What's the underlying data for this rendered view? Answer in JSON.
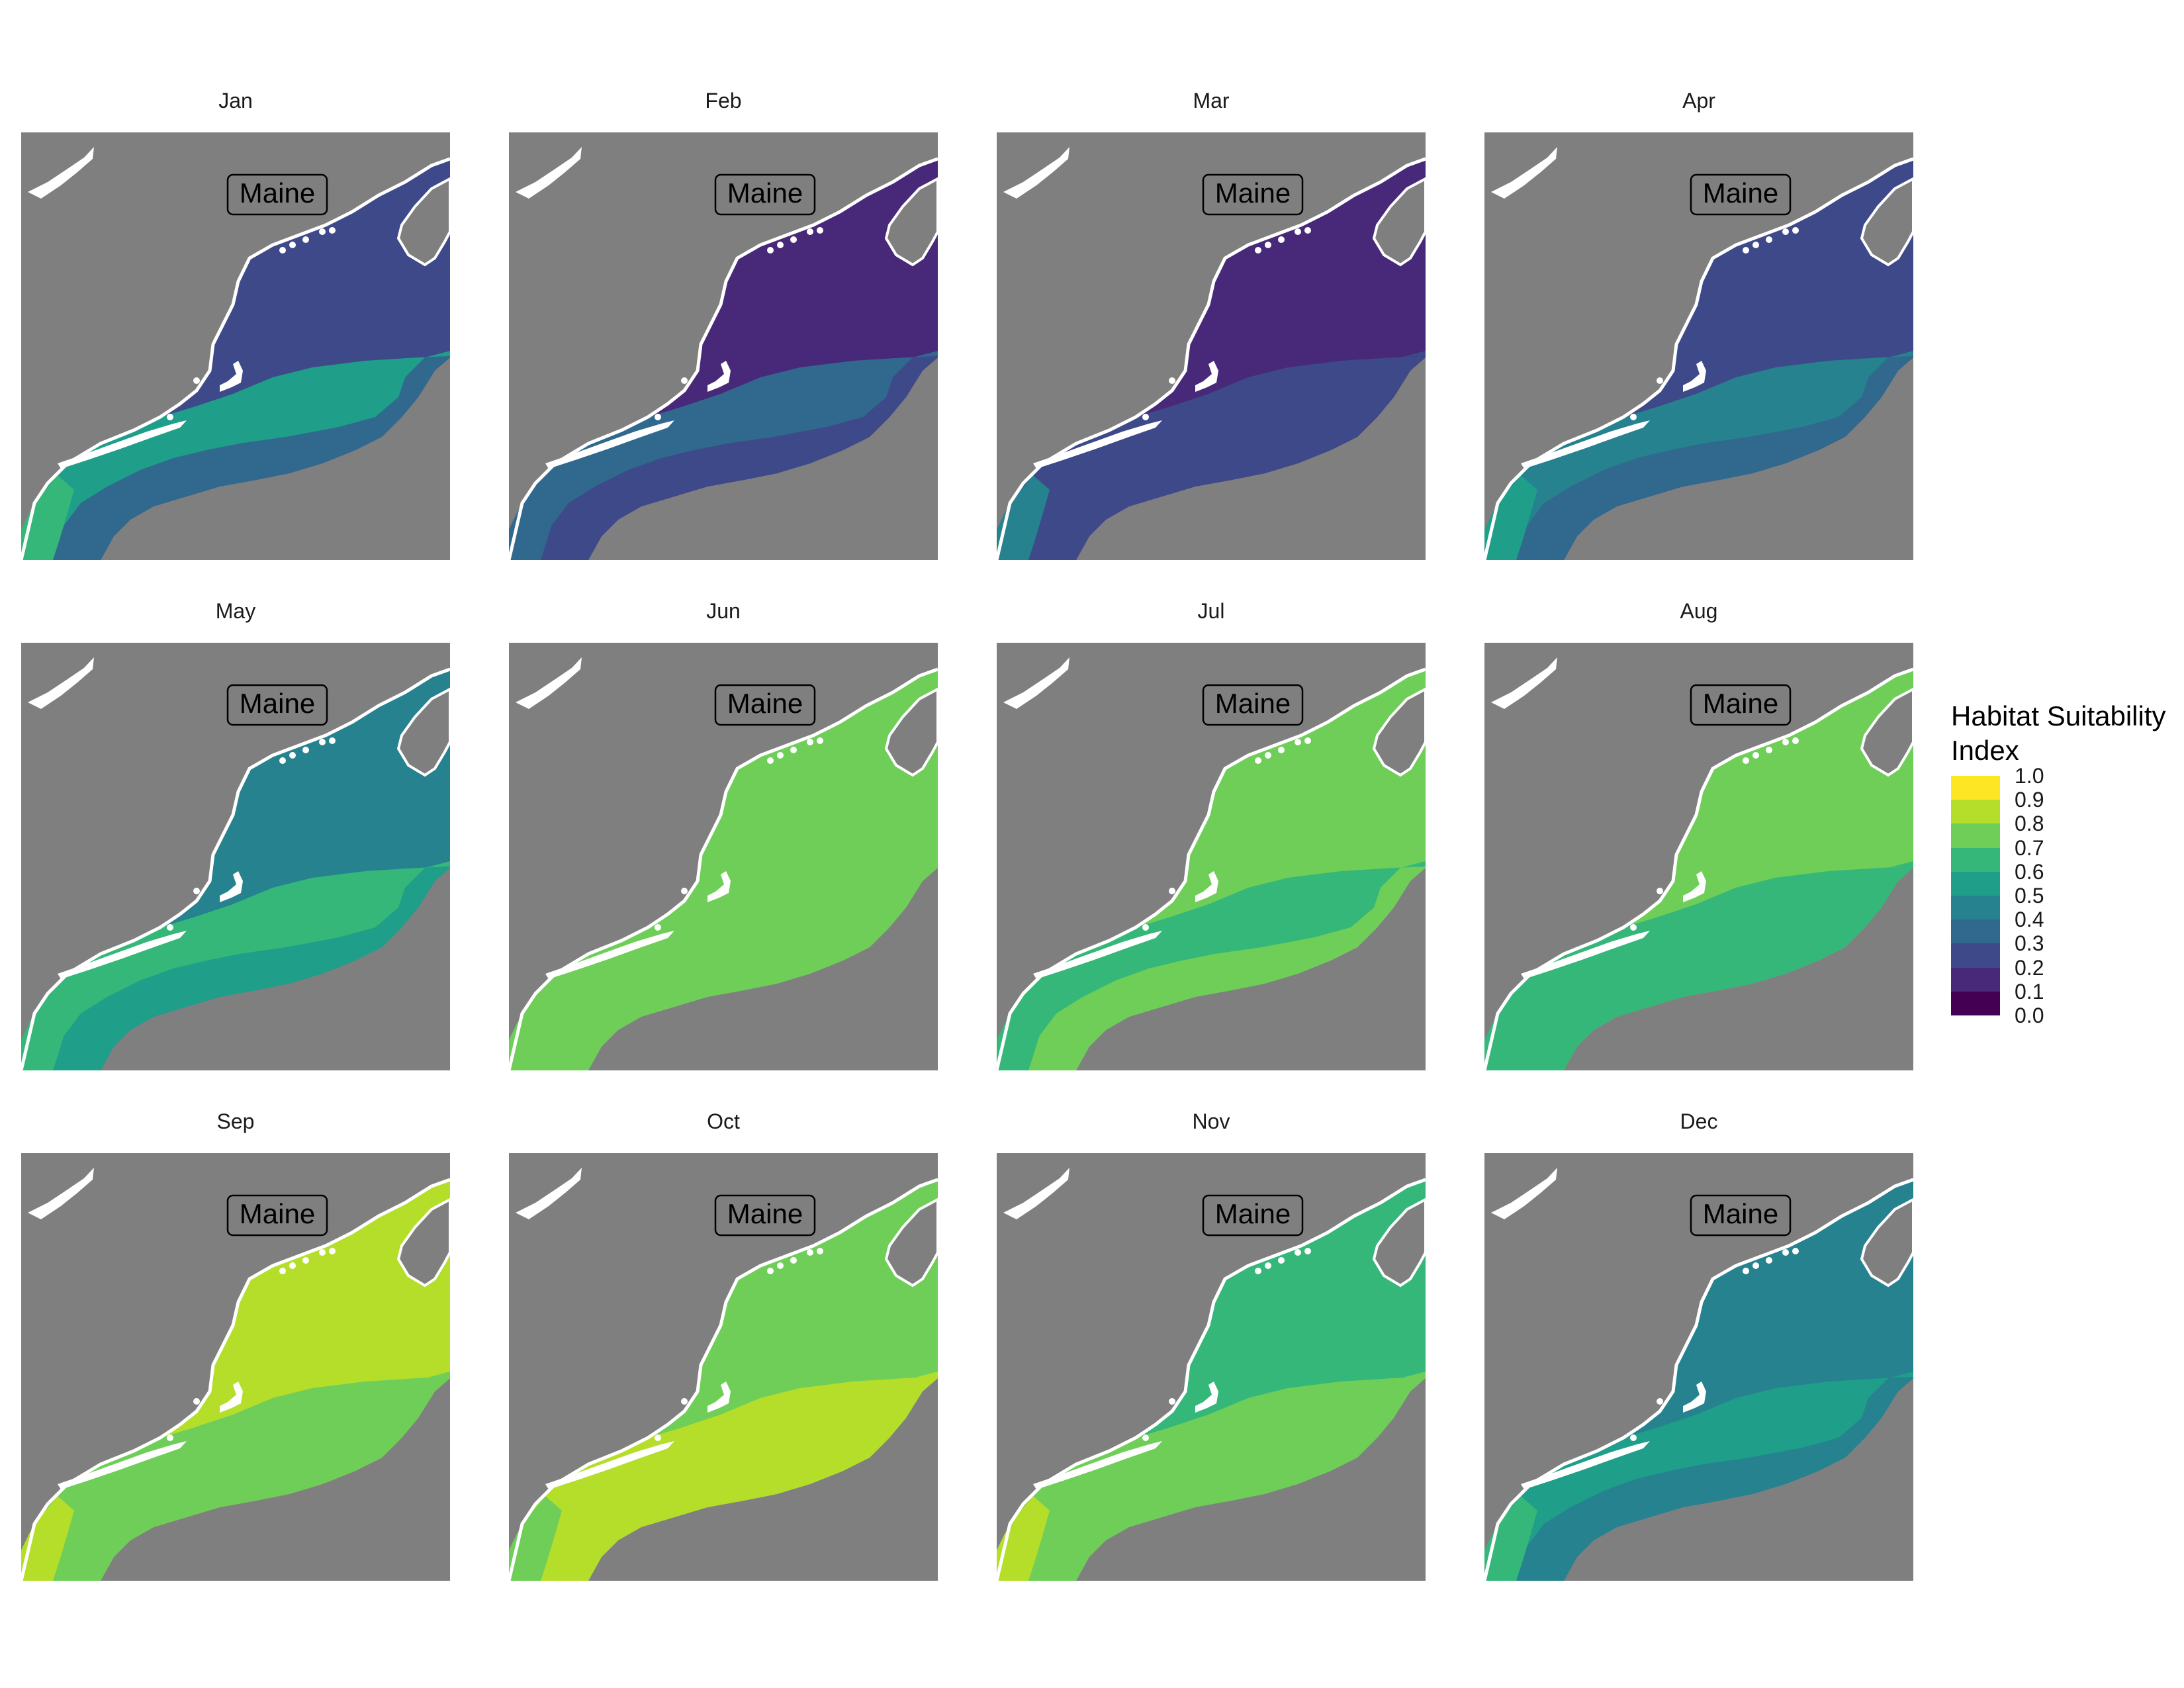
{
  "map_label": "Maine",
  "legend": {
    "title_line1": "Habitat Suitability",
    "title_line2": "Index",
    "labels": [
      "1.0",
      "0.9",
      "0.8",
      "0.7",
      "0.6",
      "0.5",
      "0.4",
      "0.3",
      "0.2",
      "0.1",
      "0.0"
    ],
    "colors": [
      "#fde725",
      "#b5de2b",
      "#6ece58",
      "#35b779",
      "#1f9e89",
      "#26828e",
      "#31688e",
      "#3e4989",
      "#482878",
      "#440154"
    ]
  },
  "colors": {
    "land": "#7f7f7f",
    "coast": "#ffffff"
  },
  "months": [
    {
      "label": "Jan",
      "gulf_index": 0.25,
      "mid_index": 0.35,
      "south_index": 0.55,
      "inshore_index": 0.65
    },
    {
      "label": "Feb",
      "gulf_index": 0.15,
      "mid_index": 0.25,
      "south_index": 0.35,
      "inshore_index": 0.35
    },
    {
      "label": "Mar",
      "gulf_index": 0.15,
      "mid_index": 0.25,
      "south_index": 0.25,
      "inshore_index": 0.45
    },
    {
      "label": "Apr",
      "gulf_index": 0.25,
      "mid_index": 0.35,
      "south_index": 0.45,
      "inshore_index": 0.55
    },
    {
      "label": "May",
      "gulf_index": 0.45,
      "mid_index": 0.55,
      "south_index": 0.65,
      "inshore_index": 0.65
    },
    {
      "label": "Jun",
      "gulf_index": 0.75,
      "mid_index": 0.75,
      "south_index": 0.75,
      "inshore_index": 0.75
    },
    {
      "label": "Jul",
      "gulf_index": 0.75,
      "mid_index": 0.75,
      "south_index": 0.65,
      "inshore_index": 0.65
    },
    {
      "label": "Aug",
      "gulf_index": 0.75,
      "mid_index": 0.65,
      "south_index": 0.65,
      "inshore_index": 0.65
    },
    {
      "label": "Sep",
      "gulf_index": 0.85,
      "mid_index": 0.75,
      "south_index": 0.75,
      "inshore_index": 0.85
    },
    {
      "label": "Oct",
      "gulf_index": 0.75,
      "mid_index": 0.85,
      "south_index": 0.85,
      "inshore_index": 0.75
    },
    {
      "label": "Nov",
      "gulf_index": 0.65,
      "mid_index": 0.75,
      "south_index": 0.75,
      "inshore_index": 0.85
    },
    {
      "label": "Dec",
      "gulf_index": 0.45,
      "mid_index": 0.45,
      "south_index": 0.55,
      "inshore_index": 0.65
    }
  ]
}
